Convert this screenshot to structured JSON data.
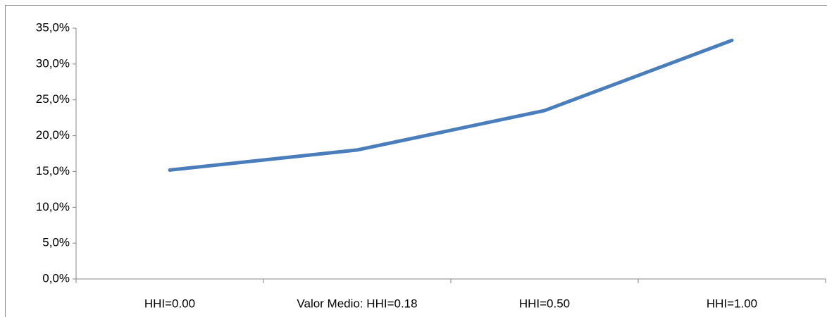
{
  "chart_data": {
    "type": "line",
    "categories": [
      "HHI=0.00",
      "Valor Medio: HHI=0.18",
      "HHI=0.50",
      "HHI=1.00"
    ],
    "series": [
      {
        "color": "#4a7ebb",
        "values": [
          15.2,
          18.0,
          23.5,
          33.3
        ]
      }
    ],
    "ylim": [
      0,
      35
    ],
    "yticks": [
      {
        "value": 0,
        "label": "0,0%"
      },
      {
        "value": 5,
        "label": "5,0%"
      },
      {
        "value": 10,
        "label": "10,0%"
      },
      {
        "value": 15,
        "label": "15,0%"
      },
      {
        "value": 20,
        "label": "20,0%"
      },
      {
        "value": 25,
        "label": "25,0%"
      },
      {
        "value": 30,
        "label": "30,0%"
      },
      {
        "value": 35,
        "label": "35,0%"
      }
    ],
    "grid": false
  }
}
